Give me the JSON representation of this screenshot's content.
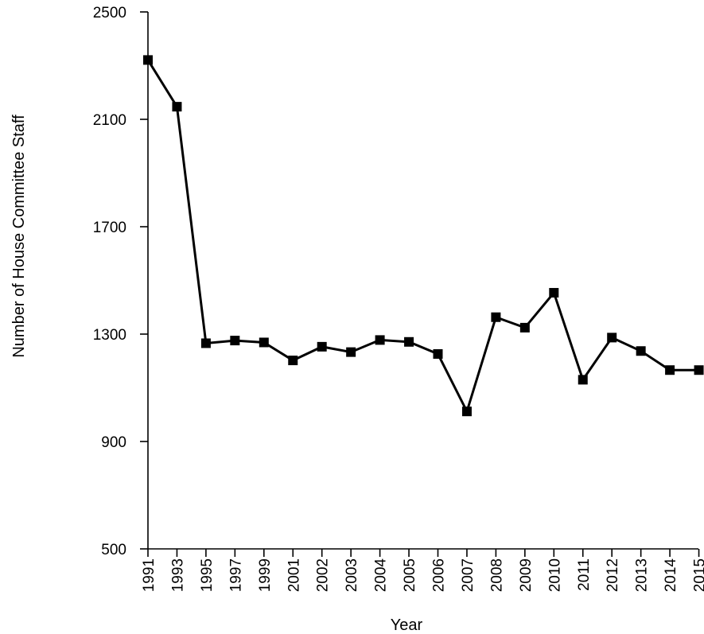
{
  "chart_data": {
    "type": "line",
    "title": "",
    "xlabel": "Year",
    "ylabel": "Number of House Committee Staff",
    "ylim": [
      500,
      2500
    ],
    "yticks": [
      500,
      900,
      1300,
      1700,
      2100,
      2500
    ],
    "grid": false,
    "legend": "none",
    "x": [
      "1991",
      "1993",
      "1995",
      "1997",
      "1999",
      "2001",
      "2002",
      "2003",
      "2004",
      "2005",
      "2006",
      "2007",
      "2008",
      "2009",
      "2010",
      "2011",
      "2012",
      "2013",
      "2014",
      "2015"
    ],
    "series": [
      {
        "values": [
          2321,
          2147,
          1266,
          1276,
          1269,
          1202,
          1253,
          1233,
          1278,
          1271,
          1226,
          1012,
          1363,
          1324,
          1454,
          1130,
          1287,
          1237,
          1166,
          1166
        ]
      }
    ],
    "colors": {
      "line": "#000000",
      "marker": "#000000",
      "axis": "#000000"
    }
  }
}
